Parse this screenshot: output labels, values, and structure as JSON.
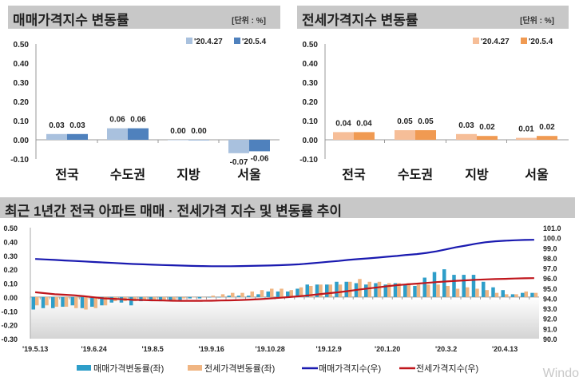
{
  "chart_data": [
    {
      "type": "bar",
      "title": "매매가격지수 변동률",
      "unit_label": "[단위 : %]",
      "categories": [
        "전국",
        "수도권",
        "지방",
        "서울"
      ],
      "series": [
        {
          "name": "'20.4.27",
          "values": [
            0.03,
            0.06,
            0.0,
            -0.07
          ],
          "color": "#a9c1de"
        },
        {
          "name": "'20.5.4",
          "values": [
            0.03,
            0.06,
            0.0,
            -0.06
          ],
          "color": "#4f81bd"
        }
      ],
      "ylim": [
        -0.1,
        0.5
      ],
      "yticks": [
        "0.50",
        "0.40",
        "0.30",
        "0.20",
        "0.10",
        "0.00",
        "-0.10"
      ],
      "data_labels": [
        [
          "0.03",
          "0.06",
          "0.00",
          "-0.07"
        ],
        [
          "0.03",
          "0.06",
          "0.00",
          "-0.06"
        ]
      ],
      "legend": "top-right"
    },
    {
      "type": "bar",
      "title": "전세가격지수 변동률",
      "unit_label": "[단위 : %]",
      "categories": [
        "전국",
        "수도권",
        "지방",
        "서울"
      ],
      "series": [
        {
          "name": "'20.4.27",
          "values": [
            0.04,
            0.05,
            0.03,
            0.01
          ],
          "color": "#f6be98"
        },
        {
          "name": "'20.5.4",
          "values": [
            0.04,
            0.05,
            0.02,
            0.02
          ],
          "color": "#f09a52"
        }
      ],
      "ylim": [
        -0.1,
        0.5
      ],
      "yticks": [
        "0.50",
        "0.40",
        "0.30",
        "0.20",
        "0.10",
        "0.00",
        "-0.10"
      ],
      "data_labels": [
        [
          "0.04",
          "0.05",
          "0.03",
          "0.01"
        ],
        [
          "0.04",
          "0.05",
          "0.02",
          "0.02"
        ]
      ],
      "legend": "top-right"
    },
    {
      "type": "bar+line",
      "title": "최근 1년간 전국 아파트 매매 · 전세가격 지수 및 변동률 추이",
      "xticks": [
        "'19.5.13",
        "'19.6.24",
        "'19.8.5",
        "'19.9.16",
        "'19.10.28",
        "'19.12.9",
        "'20.1.20",
        "'20.3.2",
        "'20.4.13"
      ],
      "ylim_left": [
        -0.3,
        0.5
      ],
      "ylim_right": [
        90.0,
        101.0
      ],
      "yticks_left": [
        "0.50",
        "0.40",
        "0.30",
        "0.20",
        "0.10",
        "0.00",
        "-0.10",
        "-0.20",
        "-0.30"
      ],
      "yticks_right": [
        "101.0",
        "100.0",
        "99.0",
        "98.0",
        "97.0",
        "96.0",
        "95.0",
        "94.0",
        "93.0",
        "92.0",
        "91.0",
        "90.0"
      ],
      "legend": "bottom",
      "series": [
        {
          "name": "매매가격변동률(좌)",
          "kind": "bar",
          "axis": "left",
          "color": "#2e9ec9",
          "values": [
            -0.09,
            -0.08,
            -0.08,
            -0.07,
            -0.06,
            -0.08,
            -0.07,
            -0.06,
            -0.04,
            -0.04,
            -0.06,
            -0.03,
            -0.03,
            -0.03,
            -0.03,
            -0.02,
            -0.01,
            -0.01,
            0.0,
            0.0,
            0.01,
            0.01,
            0.01,
            0.02,
            0.04,
            0.04,
            0.04,
            0.06,
            0.09,
            0.09,
            0.09,
            0.11,
            0.11,
            0.1,
            0.09,
            0.1,
            0.09,
            0.1,
            0.09,
            0.08,
            0.14,
            0.18,
            0.2,
            0.16,
            0.16,
            0.16,
            0.11,
            0.07,
            0.05,
            0.02,
            0.03,
            0.03
          ]
        },
        {
          "name": "전세가격변동률(좌)",
          "kind": "bar",
          "axis": "left",
          "color": "#f0b582",
          "values": [
            -0.06,
            -0.06,
            -0.07,
            -0.07,
            -0.08,
            -0.09,
            -0.08,
            -0.06,
            -0.03,
            -0.03,
            -0.03,
            -0.02,
            -0.02,
            -0.02,
            -0.02,
            -0.01,
            0.0,
            0.0,
            0.01,
            0.02,
            0.03,
            0.03,
            0.04,
            0.05,
            0.06,
            0.06,
            0.05,
            0.07,
            0.08,
            0.09,
            0.09,
            0.09,
            0.11,
            0.13,
            0.11,
            0.11,
            0.1,
            0.1,
            0.1,
            0.09,
            0.09,
            0.09,
            0.08,
            0.06,
            0.07,
            0.06,
            0.05,
            0.03,
            0.02,
            0.02,
            0.04,
            0.03
          ]
        },
        {
          "name": "매매가격지수(우)",
          "kind": "line",
          "axis": "right",
          "color": "#1a1ab0",
          "values": [
            97.9,
            97.85,
            97.8,
            97.75,
            97.7,
            97.65,
            97.6,
            97.55,
            97.5,
            97.45,
            97.4,
            97.37,
            97.33,
            97.3,
            97.27,
            97.24,
            97.21,
            97.19,
            97.18,
            97.18,
            97.18,
            97.19,
            97.21,
            97.23,
            97.25,
            97.28,
            97.32,
            97.37,
            97.45,
            97.53,
            97.62,
            97.7,
            97.8,
            97.88,
            97.95,
            98.03,
            98.12,
            98.2,
            98.3,
            98.38,
            98.5,
            98.65,
            98.85,
            99.05,
            99.22,
            99.4,
            99.55,
            99.65,
            99.7,
            99.75,
            99.78,
            99.8
          ]
        },
        {
          "name": "전세가격지수(우)",
          "kind": "line",
          "axis": "right",
          "color": "#c0161c",
          "values": [
            94.6,
            94.5,
            94.4,
            94.35,
            94.3,
            94.2,
            94.1,
            94.0,
            93.95,
            93.9,
            93.85,
            93.82,
            93.8,
            93.78,
            93.76,
            93.75,
            93.75,
            93.75,
            93.76,
            93.78,
            93.8,
            93.83,
            93.87,
            93.92,
            93.98,
            94.05,
            94.12,
            94.2,
            94.3,
            94.4,
            94.5,
            94.6,
            94.72,
            94.85,
            94.97,
            95.08,
            95.2,
            95.3,
            95.38,
            95.45,
            95.52,
            95.6,
            95.67,
            95.73,
            95.78,
            95.83,
            95.87,
            95.9,
            95.93,
            95.96,
            95.98,
            96.0
          ]
        }
      ]
    }
  ],
  "watermark": "Windo"
}
